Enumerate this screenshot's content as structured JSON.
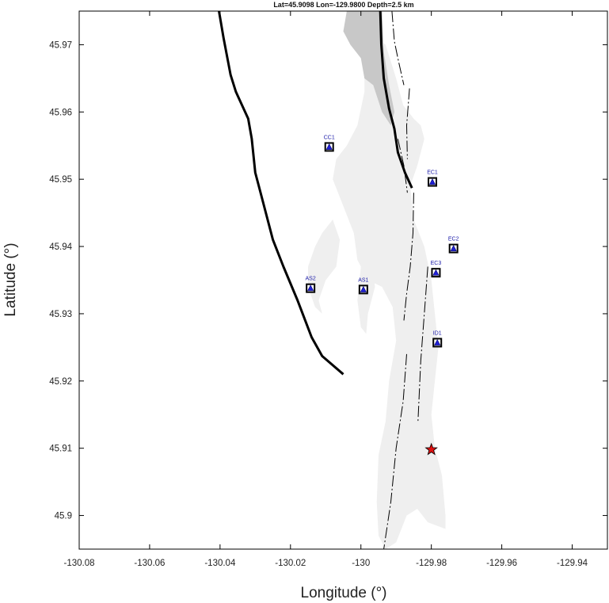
{
  "title": "Lat=45.9098  Lon=-129.9800  Depth=2.5 km",
  "axes": {
    "xlabel": "Longitude (°)",
    "ylabel": "Latitude (°)",
    "xlim": [
      -130.08,
      -129.93
    ],
    "ylim": [
      45.895,
      45.975
    ],
    "xticks": [
      -130.08,
      -130.06,
      -130.04,
      -130.02,
      -130.0,
      -129.98,
      -129.96,
      -129.94
    ],
    "xtick_labels": [
      "-130.08",
      "-130.06",
      "-130.04",
      "-130.02",
      "-130",
      "-129.98",
      "-129.96",
      "-129.94"
    ],
    "yticks": [
      45.9,
      45.91,
      45.92,
      45.93,
      45.94,
      45.95,
      45.96,
      45.97
    ],
    "ytick_labels": [
      "45.9",
      "45.91",
      "45.92",
      "45.93",
      "45.94",
      "45.95",
      "45.96",
      "45.97"
    ]
  },
  "stations": [
    {
      "id": "CC1",
      "lon": -130.009,
      "lat": 45.9548
    },
    {
      "id": "EC1",
      "lon": -129.9797,
      "lat": 45.9496
    },
    {
      "id": "EC2",
      "lon": -129.9737,
      "lat": 45.9397
    },
    {
      "id": "EC3",
      "lon": -129.9787,
      "lat": 45.9361
    },
    {
      "id": "AS2",
      "lon": -130.0143,
      "lat": 45.9338
    },
    {
      "id": "AS1",
      "lon": -129.9993,
      "lat": 45.9336
    },
    {
      "id": "ID1",
      "lon": -129.9783,
      "lat": 45.9257
    }
  ],
  "event": {
    "lon": -129.98,
    "lat": 45.9098,
    "depth_km": 2.5
  },
  "colors": {
    "station_fill": "#1f1fd6",
    "station_border": "#000000",
    "event_star": "#e01010",
    "lava_light": "#efefef",
    "lava_dark": "#c8c8c8",
    "caldera_line": "#000000"
  },
  "caldera_wall_west": [
    [
      -130.0403,
      45.975
    ],
    [
      -130.039,
      45.971
    ],
    [
      -130.037,
      45.9655
    ],
    [
      -130.0355,
      45.963
    ],
    [
      -130.032,
      45.959
    ],
    [
      -130.031,
      45.956
    ],
    [
      -130.03,
      45.951
    ],
    [
      -130.029,
      45.949
    ],
    [
      -130.025,
      45.941
    ],
    [
      -130.022,
      45.937
    ],
    [
      -130.018,
      45.932
    ],
    [
      -130.014,
      45.9265
    ],
    [
      -130.011,
      45.9237
    ],
    [
      -130.005,
      45.921
    ]
  ],
  "caldera_wall_east": [
    [
      -129.9945,
      45.975
    ],
    [
      -129.9942,
      45.97
    ],
    [
      -129.9935,
      45.965
    ],
    [
      -129.992,
      45.9605
    ],
    [
      -129.9905,
      45.9575
    ],
    [
      -129.9895,
      45.954
    ],
    [
      -129.9875,
      45.951
    ],
    [
      -129.9855,
      45.9487
    ]
  ],
  "fissures": [
    [
      [
        -129.9912,
        45.975
      ],
      [
        -129.9905,
        45.9705
      ],
      [
        -129.9893,
        45.9675
      ],
      [
        -129.9878,
        45.964
      ]
    ],
    [
      [
        -129.9862,
        45.9635
      ],
      [
        -129.987,
        45.958
      ],
      [
        -129.9868,
        45.953
      ]
    ],
    [
      [
        -129.9895,
        45.956
      ],
      [
        -129.9878,
        45.952
      ],
      [
        -129.9868,
        45.948
      ]
    ],
    [
      [
        -129.985,
        45.948
      ],
      [
        -129.9852,
        45.942
      ],
      [
        -129.986,
        45.937
      ],
      [
        -129.987,
        45.933
      ],
      [
        -129.9878,
        45.929
      ]
    ],
    [
      [
        -129.981,
        45.937
      ],
      [
        -129.982,
        45.93
      ],
      [
        -129.983,
        45.923
      ],
      [
        -129.9838,
        45.914
      ]
    ],
    [
      [
        -129.987,
        45.924
      ],
      [
        -129.988,
        45.917
      ],
      [
        -129.99,
        45.91
      ],
      [
        -129.9915,
        45.902
      ],
      [
        -129.9935,
        45.895
      ]
    ]
  ],
  "lava_light": [
    [
      [
        -129.998,
        45.972
      ],
      [
        -129.993,
        45.97
      ],
      [
        -129.99,
        45.965
      ],
      [
        -129.988,
        45.961
      ],
      [
        -129.985,
        45.959
      ],
      [
        -129.983,
        45.958
      ],
      [
        -129.982,
        45.956
      ],
      [
        -129.984,
        45.952
      ],
      [
        -129.986,
        45.949
      ],
      [
        -129.985,
        45.944
      ],
      [
        -129.982,
        45.94
      ],
      [
        -129.98,
        45.935
      ],
      [
        -129.979,
        45.93
      ],
      [
        -129.978,
        45.925
      ],
      [
        -129.979,
        45.92
      ],
      [
        -129.98,
        45.915
      ],
      [
        -129.979,
        45.91
      ],
      [
        -129.977,
        45.906
      ],
      [
        -129.976,
        45.9
      ],
      [
        -129.976,
        45.898
      ],
      [
        -129.981,
        45.899
      ],
      [
        -129.984,
        45.901
      ],
      [
        -129.987,
        45.9
      ],
      [
        -129.99,
        45.896
      ],
      [
        -129.993,
        45.895
      ],
      [
        -129.995,
        45.897
      ],
      [
        -129.9955,
        45.902
      ],
      [
        -129.995,
        45.909
      ],
      [
        -129.993,
        45.914
      ],
      [
        -129.992,
        45.92
      ],
      [
        -129.99,
        45.926
      ],
      [
        -129.991,
        45.931
      ],
      [
        -129.994,
        45.934
      ],
      [
        -129.998,
        45.935
      ],
      [
        -130.001,
        45.938
      ],
      [
        -130.002,
        45.942
      ],
      [
        -130.005,
        45.946
      ],
      [
        -130.008,
        45.95
      ],
      [
        -130.007,
        45.953
      ],
      [
        -130.004,
        45.955
      ],
      [
        -130.001,
        45.958
      ],
      [
        -129.999,
        45.963
      ],
      [
        -129.999,
        45.968
      ]
    ],
    [
      [
        -130.011,
        45.942
      ],
      [
        -130.008,
        45.944
      ],
      [
        -130.006,
        45.941
      ],
      [
        -130.007,
        45.937
      ],
      [
        -130.01,
        45.935
      ],
      [
        -130.012,
        45.932
      ],
      [
        -130.011,
        45.93
      ],
      [
        -130.013,
        45.931
      ],
      [
        -130.015,
        45.934
      ],
      [
        -130.015,
        45.937
      ],
      [
        -130.013,
        45.94
      ]
    ],
    [
      [
        -130.0,
        45.937
      ],
      [
        -129.997,
        45.938
      ],
      [
        -129.996,
        45.934
      ],
      [
        -129.998,
        45.93
      ],
      [
        -129.9985,
        45.927
      ],
      [
        -130.0,
        45.928
      ],
      [
        -130.001,
        45.932
      ]
    ]
  ],
  "lava_dark": [
    [
      [
        -130.004,
        45.975
      ],
      [
        -129.994,
        45.975
      ],
      [
        -129.9935,
        45.969
      ],
      [
        -129.992,
        45.964
      ],
      [
        -129.9905,
        45.96
      ],
      [
        -129.9915,
        45.958
      ],
      [
        -129.994,
        45.96
      ],
      [
        -129.9965,
        45.964
      ],
      [
        -129.999,
        45.965
      ],
      [
        -130.0,
        45.968
      ],
      [
        -130.003,
        45.97
      ],
      [
        -130.005,
        45.972
      ]
    ]
  ]
}
